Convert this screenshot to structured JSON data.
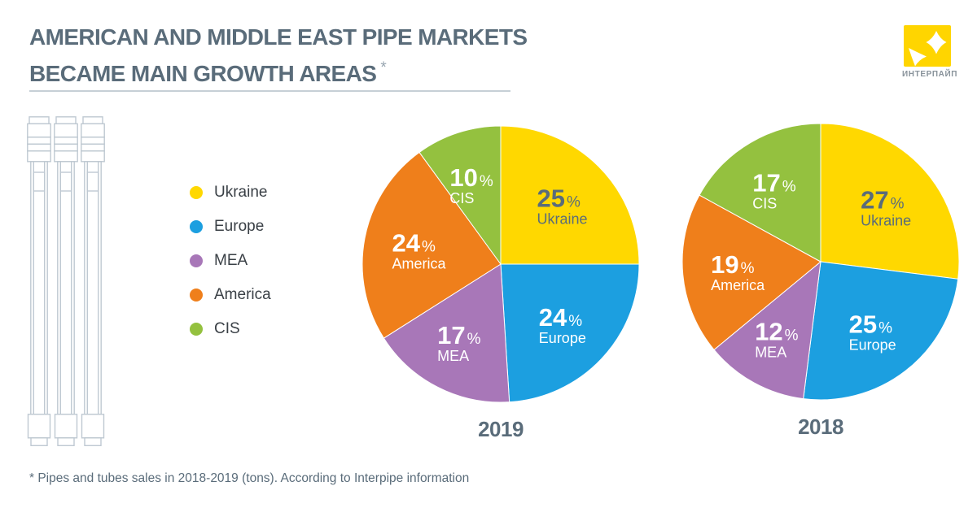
{
  "title": {
    "line1": "AMERICAN AND MIDDLE EAST PIPE MARKETS",
    "line2": "BECAME MAIN GROWTH AREAS",
    "footnote_marker": "*"
  },
  "logo": {
    "brand_name": "ИНТЕРПАЙП",
    "brand_color": "#FFD500",
    "mark_icon": "interpipe-star-logo"
  },
  "legend": {
    "items": [
      {
        "label": "Ukraine",
        "color": "#FFD800"
      },
      {
        "label": "Europe",
        "color": "#1C9FE0"
      },
      {
        "label": "MEA",
        "color": "#A877B8"
      },
      {
        "label": "America",
        "color": "#EF7F1B"
      },
      {
        "label": "CIS",
        "color": "#94C13F"
      }
    ],
    "position": "left"
  },
  "chart_data": [
    {
      "type": "pie",
      "title": "2019",
      "labels": [
        "Ukraine",
        "Europe",
        "MEA",
        "America",
        "CIS"
      ],
      "values": [
        25,
        24,
        17,
        24,
        10
      ],
      "unit": "%",
      "colors": [
        "#FFD800",
        "#1C9FE0",
        "#A877B8",
        "#EF7F1B",
        "#94C13F"
      ],
      "label_colors": [
        "#5A6C7A",
        "#FFFFFF",
        "#FFFFFF",
        "#FFFFFF",
        "#FFFFFF"
      ],
      "start_angle_deg": 0,
      "direction": "clockwise"
    },
    {
      "type": "pie",
      "title": "2018",
      "labels": [
        "Ukraine",
        "Europe",
        "MEA",
        "America",
        "CIS"
      ],
      "values": [
        27,
        25,
        12,
        19,
        17
      ],
      "unit": "%",
      "colors": [
        "#FFD800",
        "#1C9FE0",
        "#A877B8",
        "#EF7F1B",
        "#94C13F"
      ],
      "label_colors": [
        "#5A6C7A",
        "#FFFFFF",
        "#FFFFFF",
        "#FFFFFF",
        "#FFFFFF"
      ],
      "start_angle_deg": 0,
      "direction": "clockwise"
    }
  ],
  "footnote": "* Pipes and tubes sales in 2018-2019 (tons). According to Interpipe information"
}
